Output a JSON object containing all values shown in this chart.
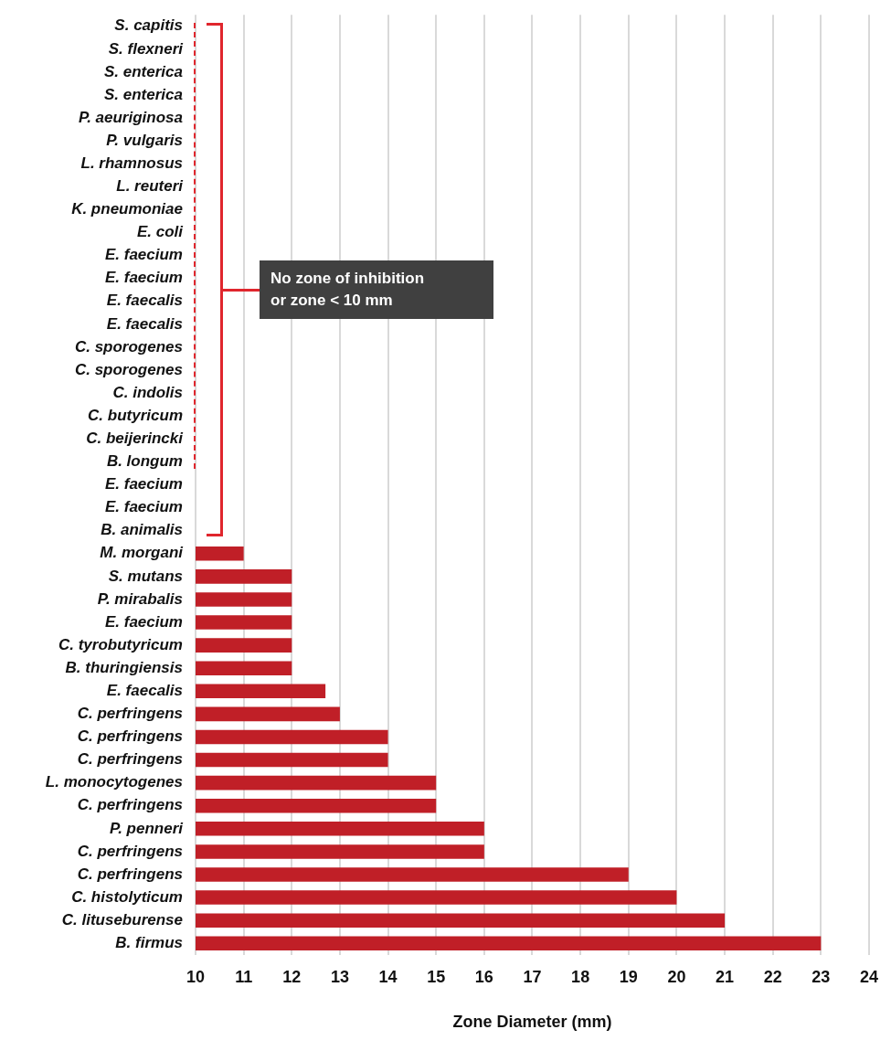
{
  "chart_data": {
    "type": "bar",
    "orientation": "horizontal",
    "xlabel": "Zone Diameter (mm)",
    "categories": [
      "S. capitis",
      "S. flexneri",
      "S. enterica",
      "S. enterica",
      "P. aeuriginosa",
      "P. vulgaris",
      "L. rhamnosus",
      "L. reuteri",
      "K. pneumoniae",
      "E. coli",
      "E. faecium",
      "E. faecium",
      "E. faecalis",
      "E. faecalis",
      "C. sporogenes",
      "C. sporogenes",
      "C. indolis",
      "C. butyricum",
      "C. beijerincki",
      "B. longum",
      "E. faecium",
      "E. faecium",
      "B. animalis",
      "M. morgani",
      "S. mutans",
      "P. mirabalis",
      "E. faecium",
      "C. tyrobutyricum",
      "B. thuringiensis",
      "E. faecalis",
      "C. perfringens",
      "C. perfringens",
      "C. perfringens",
      "L. monocytogenes",
      "C. perfringens",
      "P. penneri",
      "C. perfringens",
      "C. perfringens",
      "C. histolyticum",
      "C. lituseburense",
      "B. firmus"
    ],
    "values": [
      null,
      null,
      null,
      null,
      null,
      null,
      null,
      null,
      null,
      null,
      null,
      null,
      null,
      null,
      null,
      null,
      null,
      null,
      null,
      null,
      null,
      null,
      null,
      11,
      12,
      12,
      12,
      12,
      12,
      12.7,
      13,
      14,
      14,
      15,
      15,
      16,
      16,
      19,
      20,
      21,
      23
    ],
    "color": "#c01f27",
    "xlim": [
      10,
      24
    ],
    "xticks": [
      10,
      11,
      12,
      13,
      14,
      15,
      16,
      17,
      18,
      19,
      20,
      21,
      22,
      23,
      24
    ],
    "grid": "x",
    "legend": false,
    "annotations": [
      "No zone of inhibition\nor zone < 10 mm"
    ]
  }
}
